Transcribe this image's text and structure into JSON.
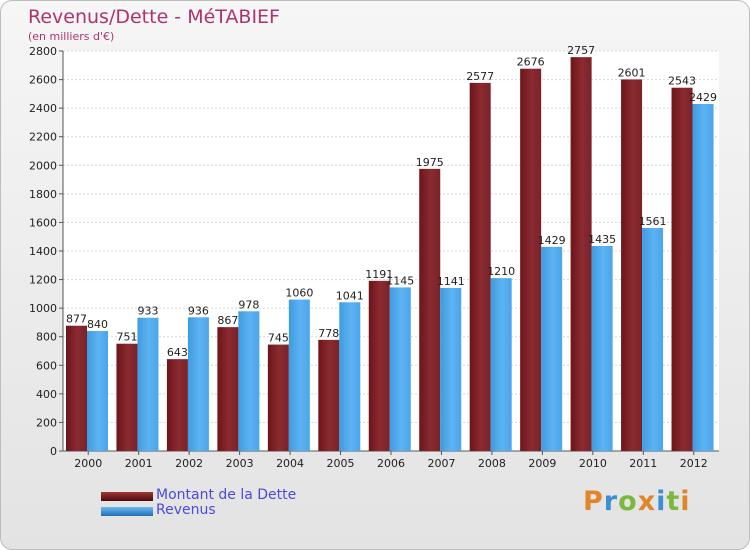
{
  "header": {
    "title": "Revenus/Dette - MéTABIEF",
    "subtitle": "(en milliers d'€)"
  },
  "chart_data": {
    "type": "bar",
    "categories": [
      "2000",
      "2001",
      "2002",
      "2003",
      "2004",
      "2005",
      "2006",
      "2007",
      "2008",
      "2009",
      "2010",
      "2011",
      "2012"
    ],
    "series": [
      {
        "name": "Montant de la Dette",
        "color": "#7a1f24",
        "values": [
          877,
          751,
          643,
          867,
          745,
          778,
          1191,
          1975,
          2577,
          2676,
          2757,
          2601,
          2543
        ]
      },
      {
        "name": "Revenus",
        "color": "#3d9de6",
        "values": [
          840,
          933,
          936,
          978,
          1060,
          1041,
          1145,
          1141,
          1210,
          1429,
          1435,
          1561,
          2429
        ]
      }
    ],
    "ylim": [
      0,
      2800
    ],
    "yticks": [
      0,
      200,
      400,
      600,
      800,
      1000,
      1200,
      1400,
      1600,
      1800,
      2000,
      2200,
      2400,
      2600,
      2800
    ],
    "grid": true,
    "legend_position": "bottom-left"
  },
  "logo": {
    "letters": [
      "P",
      "r",
      "o",
      "x",
      "i",
      "t",
      "i"
    ],
    "colors": [
      "#e0852a",
      "#3c8fd1",
      "#7ab83e",
      "#e0852a",
      "#3c8fd1",
      "#7ab83e",
      "#e0852a"
    ]
  }
}
